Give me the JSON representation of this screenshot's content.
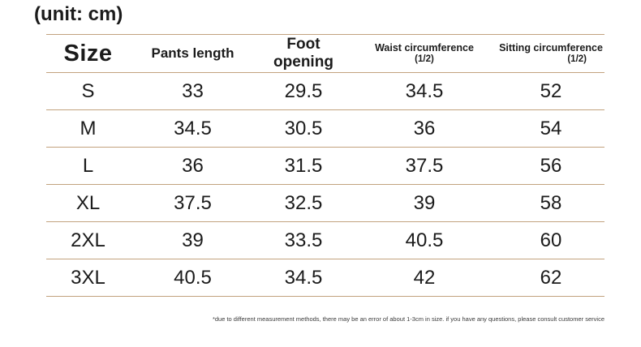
{
  "page": {
    "unit_label": "(unit: cm)",
    "footnote": "*due to different measurement methods, there may be an error of about 1-3cm in size. if you have any questions, please consult customer service"
  },
  "colors": {
    "line": "#c2a27e",
    "text": "#1b1b1b",
    "background": "#ffffff"
  },
  "table": {
    "columns": [
      {
        "label": "Size",
        "sub": ""
      },
      {
        "label": "Pants length",
        "sub": ""
      },
      {
        "label": "Foot opening",
        "sub": ""
      },
      {
        "label": "Waist circumference",
        "sub": "(1/2)"
      },
      {
        "label": "Sitting circumference",
        "sub": "(1/2)"
      }
    ],
    "rows": [
      [
        "S",
        "33",
        "29.5",
        "34.5",
        "52"
      ],
      [
        "M",
        "34.5",
        "30.5",
        "36",
        "54"
      ],
      [
        "L",
        "36",
        "31.5",
        "37.5",
        "56"
      ],
      [
        "XL",
        "37.5",
        "32.5",
        "39",
        "58"
      ],
      [
        "2XL",
        "39",
        "33.5",
        "40.5",
        "60"
      ],
      [
        "3XL",
        "40.5",
        "34.5",
        "42",
        "62"
      ]
    ]
  },
  "chart_data": {
    "type": "table",
    "title": "(unit: cm)",
    "columns": [
      "Size",
      "Pants length",
      "Foot opening",
      "Waist circumference (1/2)",
      "Sitting circumference (1/2)"
    ],
    "rows": [
      [
        "S",
        33,
        29.5,
        34.5,
        52
      ],
      [
        "M",
        34.5,
        30.5,
        36,
        54
      ],
      [
        "L",
        36,
        31.5,
        37.5,
        56
      ],
      [
        "XL",
        37.5,
        32.5,
        39,
        58
      ],
      [
        "2XL",
        39,
        33.5,
        40.5,
        60
      ],
      [
        "3XL",
        40.5,
        34.5,
        42,
        62
      ]
    ],
    "footnote": "*due to different measurement methods, there may be an error of about 1-3cm in size. if you have any questions, please consult customer service"
  }
}
